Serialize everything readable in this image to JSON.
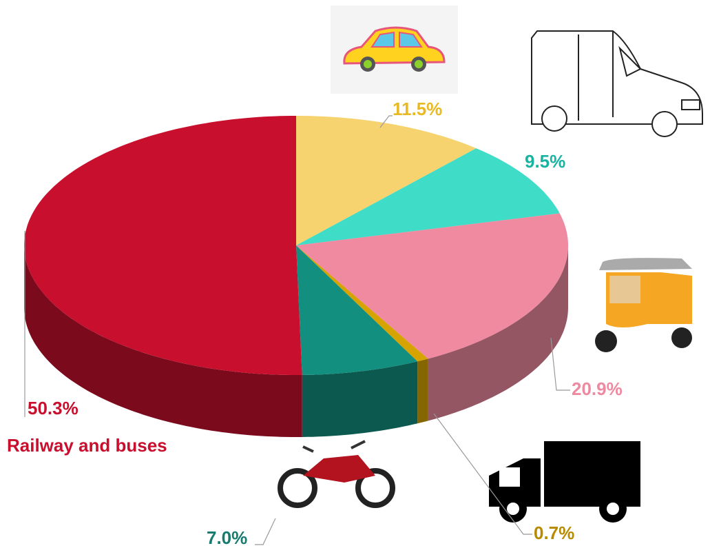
{
  "chart_data": {
    "type": "pie",
    "categories": [
      null,
      null,
      null,
      null,
      null,
      "Railway and buses"
    ],
    "values": [
      11.5,
      9.5,
      20.9,
      0.7,
      7.0,
      50.3
    ],
    "value_labels": [
      "11.5%",
      "9.5%",
      "20.9%",
      "0.7%",
      "7.0%",
      "50.3%"
    ],
    "colors": [
      "#f6d36f",
      "#3fdcc8",
      "#ef8aa0",
      "#d6a400",
      "#138f80",
      "#c8102e"
    ]
  }
}
